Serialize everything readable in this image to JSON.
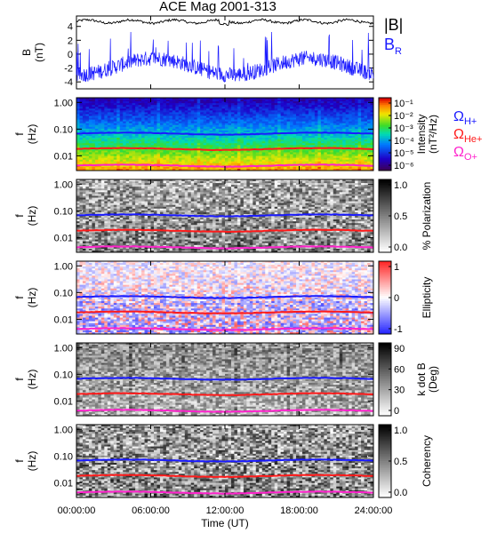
{
  "title": "ACE Mag 2001-313",
  "colors": {
    "BR": "#1a1aff",
    "Bmag": "#000000",
    "H": "#1a1aff",
    "He": "#ff1a1a",
    "O": "#ff22cc"
  },
  "chart_data": [
    {
      "type": "line",
      "name": "B timeseries",
      "ylabel": "B\n(nT)",
      "ylabel_line1": "B",
      "ylabel_line2": "(nT)",
      "yticks": [
        "4",
        "2",
        "0",
        "-2",
        "-4"
      ],
      "ytick_values": [
        4,
        2,
        0,
        -2,
        -4
      ],
      "ylim": [
        -5,
        5.5
      ],
      "xlim": [
        0,
        24
      ],
      "grid": false,
      "series": [
        {
          "name": "|B|",
          "mean": 4.7,
          "color_key": "Bmag"
        },
        {
          "name": "B_R",
          "mean": -1.8,
          "color_key": "BR"
        }
      ],
      "legend_mag": "|B|",
      "legend_r_base": "B",
      "legend_r_sub": "R"
    },
    {
      "type": "heatmap",
      "name": "Intensity spectrogram",
      "ylabel_line1": "f",
      "ylabel_line2": "(Hz)",
      "yticks": [
        "1.00",
        "0.10",
        "0.01"
      ],
      "cbar_label": "Intensity (nT²/Hz)",
      "cbar_label_1": "Intensity",
      "cbar_label_2": "(nT²/Hz)",
      "cbar_ticks": [
        "10⁻¹",
        "10⁻²",
        "10⁻³",
        "10⁻⁴",
        "10⁻⁵",
        "10⁻⁶"
      ],
      "cbar_range": [
        -6.5,
        -0.5
      ],
      "legend": [
        {
          "base": "Ω",
          "sub": "H+",
          "color_key": "H"
        },
        {
          "base": "Ω",
          "sub": "He+",
          "color_key": "He"
        },
        {
          "base": "Ω",
          "sub": "O+",
          "color_key": "O"
        }
      ]
    },
    {
      "type": "heatmap",
      "name": "Polarization spectrogram",
      "ylabel_line1": "f",
      "ylabel_line2": "(Hz)",
      "yticks": [
        "1.00",
        "0.10",
        "0.01"
      ],
      "cbar_label": "% Polarization",
      "cbar_ticks": [
        "1.0",
        "0.5",
        "0.0"
      ],
      "cbar_range": [
        0,
        1
      ]
    },
    {
      "type": "heatmap",
      "name": "Ellipticity spectrogram",
      "ylabel_line1": "f",
      "ylabel_line2": "(Hz)",
      "yticks": [
        "1.00",
        "0.10",
        "0.01"
      ],
      "cbar_label": "Ellipticity",
      "cbar_ticks": [
        "1",
        "0",
        "-1"
      ],
      "cbar_range": [
        -1,
        1
      ]
    },
    {
      "type": "heatmap",
      "name": "k dot B spectrogram",
      "ylabel_line1": "f",
      "ylabel_line2": "(Hz)",
      "yticks": [
        "1.00",
        "0.10",
        "0.01"
      ],
      "cbar_label": "k dot B (Deg)",
      "cbar_label_1": "k dot B",
      "cbar_label_2": "(Deg)",
      "cbar_ticks": [
        "90",
        "60",
        "30",
        "0"
      ],
      "cbar_range": [
        0,
        90
      ]
    },
    {
      "type": "heatmap",
      "name": "Coherency spectrogram",
      "ylabel_line1": "f",
      "ylabel_line2": "(Hz)",
      "yticks": [
        "1.00",
        "0.10",
        "0.01"
      ],
      "cbar_label": "Coherency",
      "cbar_ticks": [
        "1.0",
        "0.5",
        "0.0"
      ],
      "cbar_range": [
        0,
        1
      ]
    }
  ],
  "gyrofrequency_lines_hz": {
    "H": 0.068,
    "He": 0.018,
    "O": 0.0043
  },
  "xaxis": {
    "ticks": [
      "00:00:00",
      "06:00:00",
      "12:00:00",
      "18:00:00",
      "24:00:00"
    ],
    "tick_hours": [
      0,
      6,
      12,
      18,
      24
    ],
    "label": "Time (UT)"
  }
}
